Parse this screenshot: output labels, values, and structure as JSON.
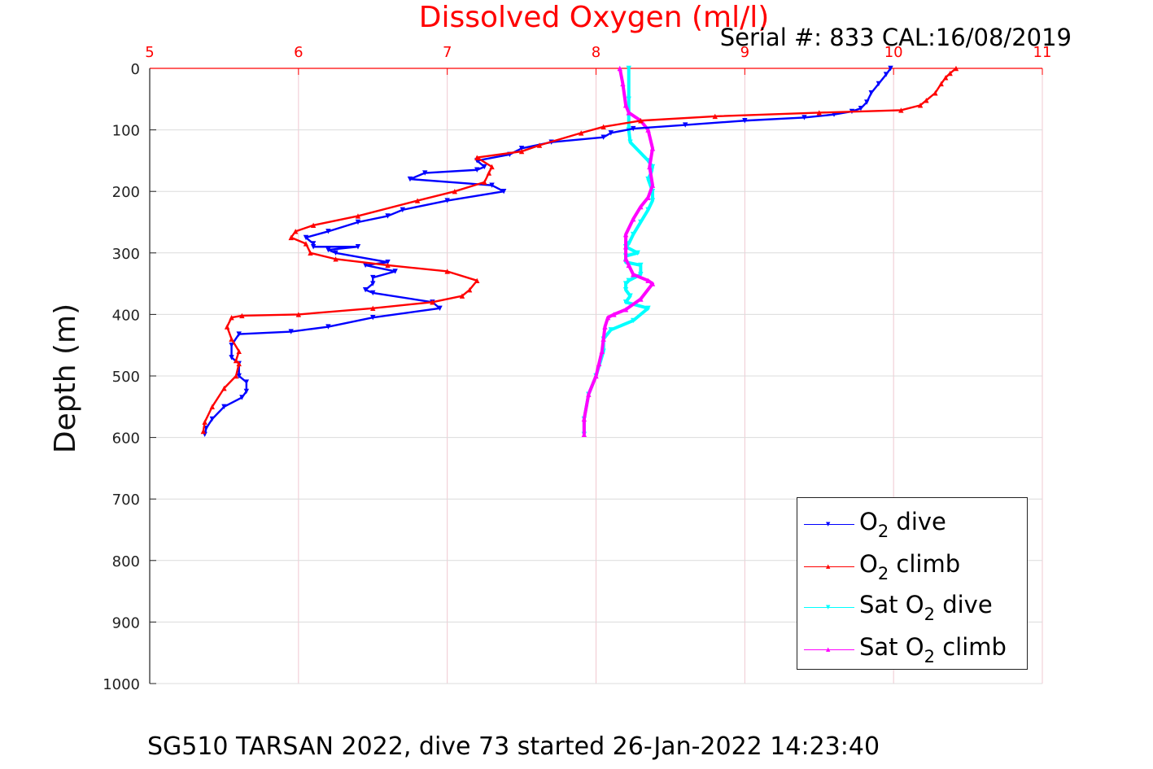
{
  "chart_data": {
    "type": "line",
    "title": "Dissolved Oxygen (ml/l)",
    "subtitle": "Serial #: 833  CAL:16/08/2019",
    "footer": "SG510 TARSAN 2022, dive 73 started 26-Jan-2022 14:23:40",
    "xlabel": "",
    "ylabel": "Depth (m)",
    "xlim": [
      5,
      11
    ],
    "ylim": [
      0,
      1000
    ],
    "y_reversed": true,
    "x_ticks": [
      "5",
      "6",
      "7",
      "8",
      "9",
      "10",
      "11"
    ],
    "y_ticks": [
      "0",
      "100",
      "200",
      "300",
      "400",
      "500",
      "600",
      "700",
      "800",
      "900",
      "1000"
    ],
    "grid": true,
    "legend_position": "bottom-right",
    "colors": {
      "o2_dive": "#0000ff",
      "o2_climb": "#ff0000",
      "sat_dive": "#00ffff",
      "sat_climb": "#ff00ff",
      "title": "#ff0000",
      "grid": "#f0c8d0"
    },
    "legend": [
      {
        "prefix": "O",
        "sub": "2",
        "suffix": " dive",
        "color": "#0000ff",
        "marker": "▼"
      },
      {
        "prefix": "O",
        "sub": "2",
        "suffix": " climb",
        "color": "#ff0000",
        "marker": "▲"
      },
      {
        "prefix": "Sat O",
        "sub": "2",
        "suffix": " dive",
        "color": "#00ffff",
        "marker": "▼"
      },
      {
        "prefix": "Sat O",
        "sub": "2",
        "suffix": " climb",
        "color": "#ff00ff",
        "marker": "▲"
      }
    ],
    "series": [
      {
        "name": "O2 dive",
        "color": "#0000ff",
        "marker": "down",
        "x": [
          9.98,
          9.95,
          9.9,
          9.85,
          9.82,
          9.78,
          9.72,
          9.6,
          9.4,
          9.0,
          8.6,
          8.25,
          8.1,
          8.05,
          7.7,
          7.5,
          7.42,
          7.2,
          7.25,
          7.2,
          6.85,
          6.75,
          7.3,
          7.38,
          7.0,
          6.7,
          6.6,
          6.4,
          6.2,
          6.05,
          6.1,
          6.1,
          6.4,
          6.2,
          6.25,
          6.6,
          6.45,
          6.65,
          6.5,
          6.5,
          6.45,
          6.5,
          6.9,
          6.95,
          6.5,
          6.2,
          5.95,
          5.6,
          5.55,
          5.55,
          5.6,
          5.6,
          5.65,
          5.65,
          5.62,
          5.5,
          5.42,
          5.38,
          5.37
        ],
        "y": [
          0,
          10,
          25,
          40,
          55,
          65,
          70,
          75,
          80,
          85,
          92,
          98,
          105,
          112,
          120,
          130,
          140,
          150,
          160,
          165,
          170,
          180,
          190,
          200,
          215,
          230,
          240,
          250,
          265,
          275,
          285,
          290,
          290,
          295,
          300,
          315,
          320,
          330,
          340,
          350,
          360,
          365,
          380,
          390,
          405,
          420,
          428,
          432,
          450,
          470,
          480,
          500,
          510,
          525,
          535,
          550,
          570,
          585,
          595
        ]
      },
      {
        "name": "O2 climb",
        "color": "#ff0000",
        "marker": "up",
        "x": [
          10.42,
          10.38,
          10.35,
          10.32,
          10.28,
          10.22,
          10.18,
          10.05,
          9.5,
          8.8,
          8.3,
          8.05,
          7.9,
          7.62,
          7.5,
          7.2,
          7.3,
          7.28,
          7.25,
          7.05,
          6.8,
          6.4,
          6.1,
          5.98,
          5.95,
          6.05,
          6.08,
          6.25,
          6.6,
          7.0,
          7.2,
          7.15,
          7.1,
          6.9,
          6.5,
          6.0,
          5.62,
          5.55,
          5.52,
          5.55,
          5.6,
          5.58,
          5.6,
          5.58,
          5.5,
          5.42,
          5.37,
          5.36
        ],
        "y": [
          0,
          8,
          15,
          25,
          40,
          52,
          60,
          68,
          72,
          78,
          85,
          95,
          105,
          125,
          135,
          145,
          160,
          170,
          185,
          200,
          215,
          240,
          255,
          265,
          275,
          285,
          300,
          310,
          320,
          330,
          345,
          360,
          370,
          380,
          390,
          400,
          402,
          405,
          420,
          440,
          460,
          475,
          480,
          500,
          520,
          550,
          575,
          590
        ]
      },
      {
        "name": "Sat O2 dive",
        "color": "#00ffff",
        "marker": "down",
        "x": [
          8.22,
          8.22,
          8.22,
          8.23,
          8.35,
          8.38,
          8.37,
          8.35,
          8.38,
          8.38,
          8.35,
          8.3,
          8.25,
          8.22,
          8.2,
          8.28,
          8.2,
          8.2,
          8.3,
          8.3,
          8.22,
          8.2,
          8.2,
          8.23,
          8.2,
          8.35,
          8.25,
          8.1,
          8.05,
          8.05,
          8.0,
          7.95,
          7.92,
          7.92
        ],
        "y": [
          0,
          50,
          100,
          120,
          150,
          160,
          170,
          180,
          200,
          215,
          230,
          250,
          270,
          285,
          290,
          300,
          305,
          315,
          320,
          335,
          345,
          350,
          360,
          370,
          380,
          390,
          410,
          425,
          440,
          460,
          500,
          530,
          570,
          595
        ]
      },
      {
        "name": "Sat O2 climb",
        "color": "#ff00ff",
        "marker": "up",
        "x": [
          8.16,
          8.18,
          8.2,
          8.22,
          8.3,
          8.35,
          8.38,
          8.36,
          8.38,
          8.35,
          8.3,
          8.25,
          8.2,
          8.2,
          8.2,
          8.22,
          8.25,
          8.35,
          8.38,
          8.3,
          8.2,
          8.12,
          8.08,
          8.06,
          8.05,
          8.04,
          8.02,
          8.0,
          7.95,
          7.92,
          7.92
        ],
        "y": [
          0,
          25,
          60,
          72,
          85,
          100,
          130,
          160,
          190,
          210,
          225,
          245,
          270,
          290,
          310,
          320,
          335,
          345,
          350,
          375,
          392,
          400,
          405,
          420,
          440,
          460,
          480,
          500,
          530,
          570,
          595
        ]
      }
    ]
  }
}
